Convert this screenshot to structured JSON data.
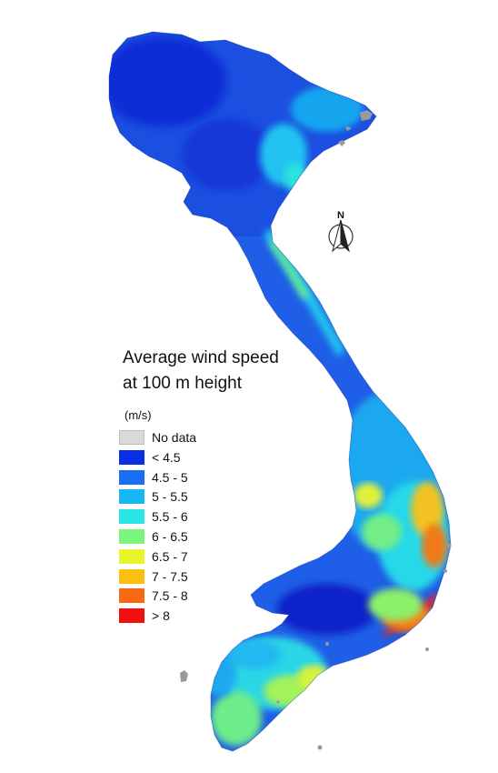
{
  "map": {
    "title_line1": "Average wind speed",
    "title_line2": "at 100 m height",
    "north_label": "N",
    "legend": {
      "unit": "(m/s)",
      "items": [
        {
          "label": "No data",
          "color": "#d9d9d9"
        },
        {
          "label": "< 4.5",
          "color": "#0a2ee6"
        },
        {
          "label": "4.5 - 5",
          "color": "#1a6ef2"
        },
        {
          "label": "5 - 5.5",
          "color": "#19b6f4"
        },
        {
          "label": "5.5 - 6",
          "color": "#2ae6e6"
        },
        {
          "label": "6 - 6.5",
          "color": "#7cf57c"
        },
        {
          "label": "6.5 - 7",
          "color": "#e6f52a"
        },
        {
          "label": "7 - 7.5",
          "color": "#fbbf0e"
        },
        {
          "label": "7.5 - 8",
          "color": "#f86a12"
        },
        {
          "label": "> 8",
          "color": "#f20f0f"
        }
      ]
    }
  }
}
